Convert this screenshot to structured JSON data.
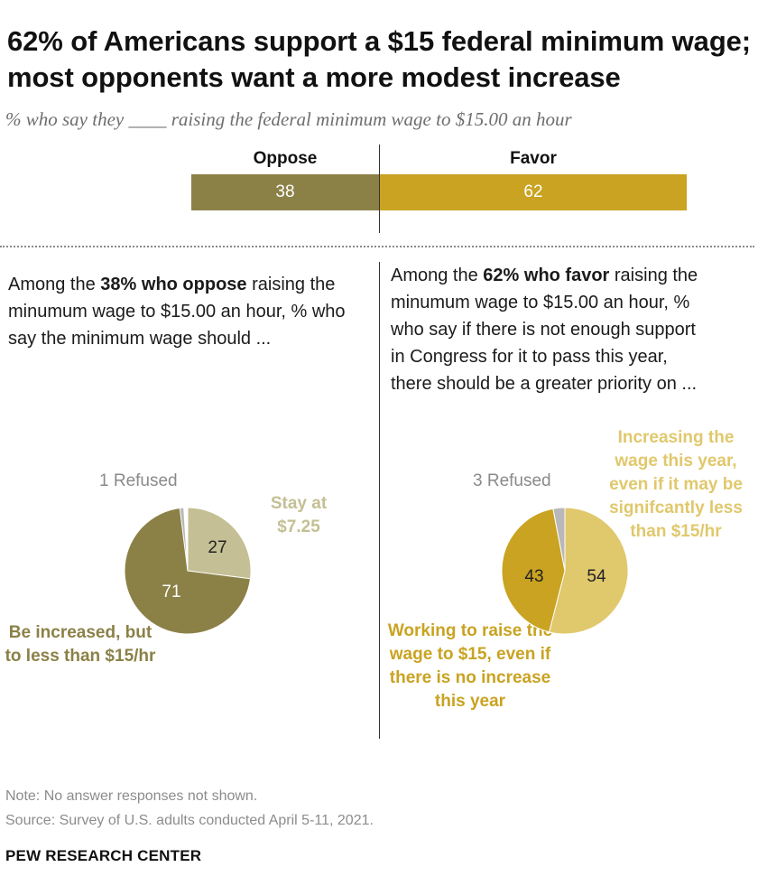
{
  "title": "62% of Americans support a $15 federal minimum wage; most opponents want a more modest increase",
  "subtitle": "% who say they ____ raising the federal minimum wage to $15.00 an hour",
  "colors": {
    "oppose": "#8b8147",
    "oppose_light": "#c4bf94",
    "favor": "#c9a321",
    "favor_light": "#e0c86c",
    "refused": "#b8b8b8"
  },
  "chart_data": [
    {
      "type": "bar",
      "title": "Oppose / Favor raising the federal minimum wage to $15.00 an hour",
      "categories": [
        "Oppose",
        "Favor"
      ],
      "values": [
        38,
        62
      ],
      "stacked": true,
      "diverging": true
    },
    {
      "type": "pie",
      "title": "Among the 38% who oppose raising the minumum wage to $15.00 an hour, % who say the minimum wage should ...",
      "labels": [
        "Stay at $7.25",
        "Be increased, but to less than $15/hr",
        "Refused"
      ],
      "values": [
        27,
        71,
        1
      ]
    },
    {
      "type": "pie",
      "title": "Among the 62% who favor raising the minumum wage to $15.00 an hour, % who say if there is not enough support in Congress for it to pass this year, there should be a greater priority on ...",
      "labels": [
        "Increasing the wage this year, even if it may be signifcantly less than $15/hr",
        "Working to raise the wage to $15, even if there is no increase this year",
        "Refused"
      ],
      "values": [
        54,
        43,
        3
      ]
    }
  ],
  "bar": {
    "oppose_label": "Oppose",
    "favor_label": "Favor",
    "oppose_value": "38",
    "favor_value": "62"
  },
  "left_panel": {
    "intro_pre": "Among the ",
    "intro_bold": "38% who oppose",
    "intro_post": " raising the minumum wage to $15.00 an hour, % who say the minimum wage should ...",
    "refused_label": "1 Refused",
    "slice_stay_value": "27",
    "slice_increase_value": "71",
    "callout_stay": "Stay at $7.25",
    "callout_increase": "Be increased, but to less than $15/hr"
  },
  "right_panel": {
    "intro_pre": "Among the ",
    "intro_bold": "62% who favor",
    "intro_post": " raising the minumum wage to $15.00 an hour, % who say if there is not enough support in Congress for it to pass this year,  there should be a greater priority on ...",
    "refused_label": "3 Refused",
    "slice_this_year_value": "54",
    "slice_working_value": "43",
    "callout_this_year": "Increasing the wage this year, even if it may be signifcantly less than $15/hr",
    "callout_working": "Working to raise the wage to $15, even if there is no increase this year"
  },
  "note": "Note: No answer responses not shown.",
  "source": "Source: Survey of U.S. adults conducted April 5-11, 2021.",
  "brand": "PEW RESEARCH CENTER"
}
